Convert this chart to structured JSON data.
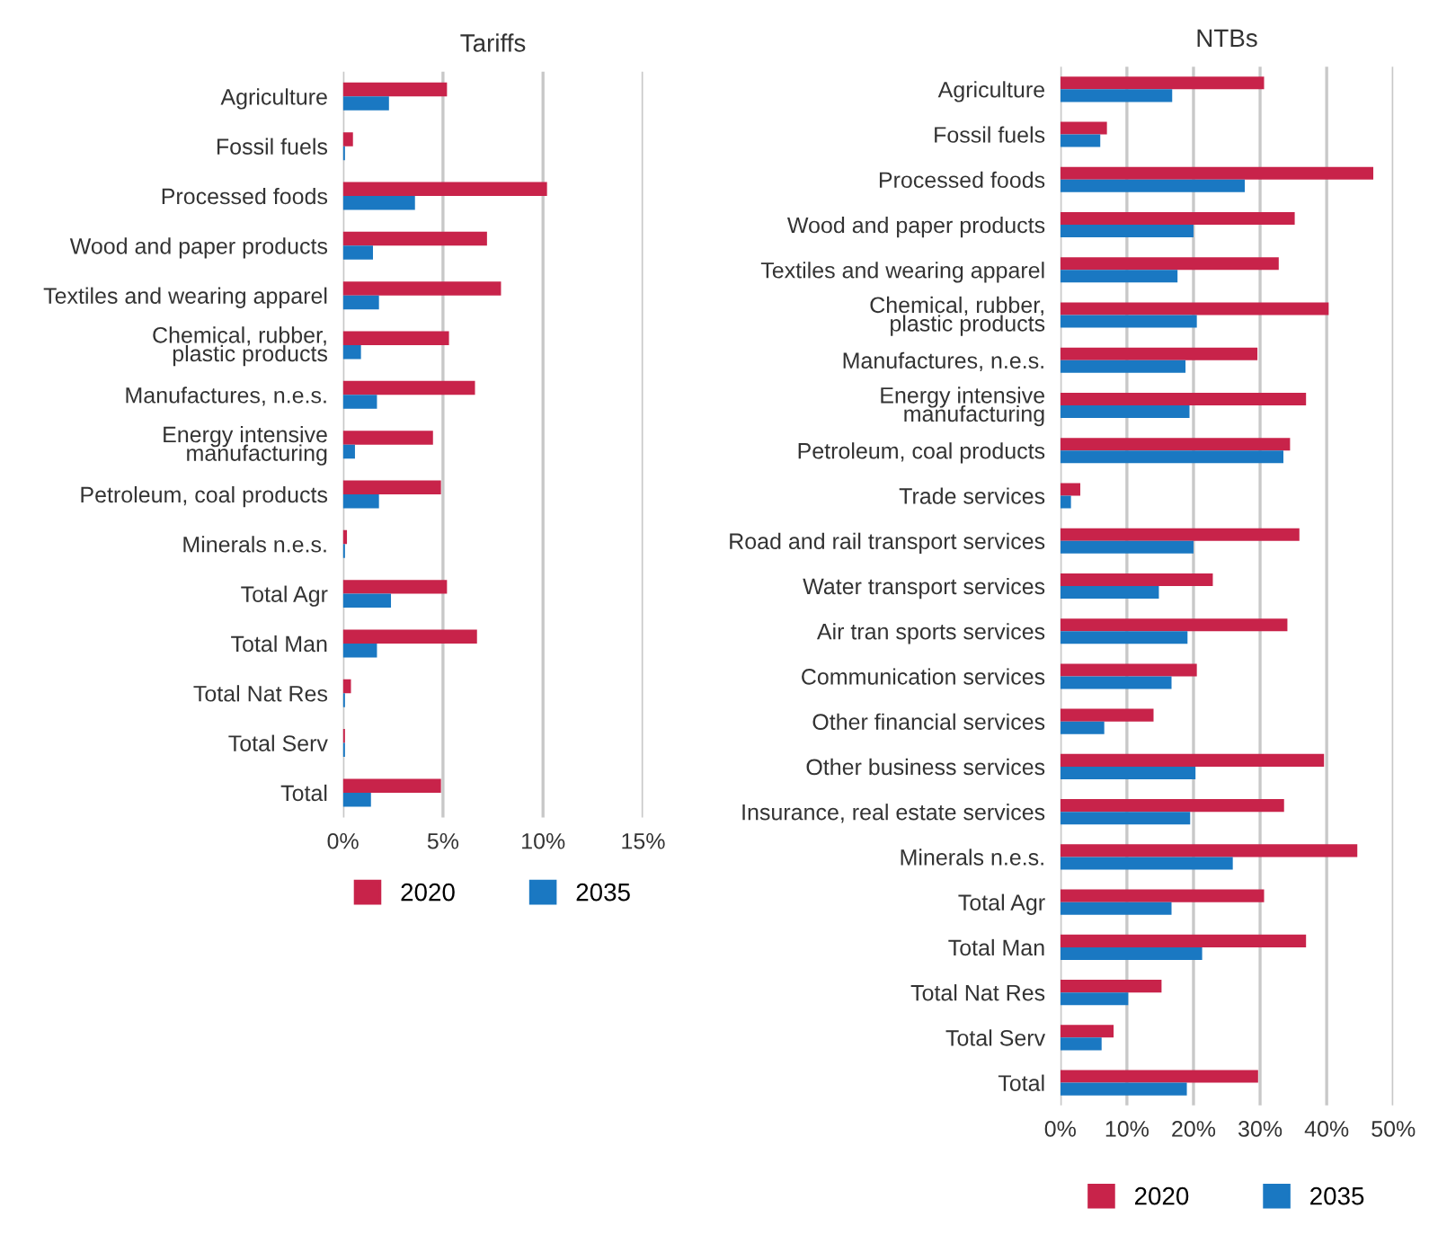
{
  "chart_data": [
    {
      "type": "bar",
      "orientation": "horizontal",
      "title": "Tariffs",
      "categories": [
        "Agriculture",
        "Fossil fuels",
        "Processed foods",
        "Wood and paper products",
        "Textiles and wearing apparel",
        "Chemical, rubber,\nplastic products",
        "Manufactures, n.e.s.",
        "Energy intensive\nmanufacturing",
        "Petroleum, coal products",
        "Minerals n.e.s.",
        "Total Agr",
        "Total Man",
        "Total Nat Res",
        "Total Serv",
        "Total"
      ],
      "series": [
        {
          "name": "2020",
          "color": "#c8234a",
          "values": [
            5.2,
            0.5,
            10.2,
            7.2,
            7.9,
            5.3,
            6.6,
            4.5,
            4.9,
            0.2,
            5.2,
            6.7,
            0.4,
            0.1,
            4.9
          ]
        },
        {
          "name": "2035",
          "color": "#1a78c2",
          "values": [
            2.3,
            0.1,
            3.6,
            1.5,
            1.8,
            0.9,
            1.7,
            0.6,
            1.8,
            0.1,
            2.4,
            1.7,
            0.1,
            0.1,
            1.4
          ]
        }
      ],
      "xlim": [
        0,
        15
      ],
      "xticks": [
        {
          "value": 0,
          "label": "0%"
        },
        {
          "value": 5,
          "label": "5%"
        },
        {
          "value": 10,
          "label": "10%"
        },
        {
          "value": 15,
          "label": "15%"
        }
      ],
      "grid": "x",
      "legend": "bottom"
    },
    {
      "type": "bar",
      "orientation": "horizontal",
      "title": "NTBs",
      "categories": [
        "Agriculture",
        "Fossil fuels",
        "Processed foods",
        "Wood and paper products",
        "Textiles and wearing apparel",
        "Chemical, rubber,\nplastic products",
        "Manufactures, n.e.s.",
        "Energy intensive\nmanufacturing",
        "Petroleum, coal products",
        "Trade services",
        "Road and rail transport services",
        "Water transport services",
        "Air tran sports services",
        "Communication services",
        "Other financial services",
        "Other business services",
        "Insurance, real estate services",
        "Minerals n.e.s.",
        "Total Agr",
        "Total Man",
        "Total Nat Res",
        "Total Serv",
        "Total"
      ],
      "series": [
        {
          "name": "2020",
          "color": "#c8234a",
          "values": [
            30.6,
            7.0,
            47.0,
            35.2,
            32.8,
            40.3,
            29.6,
            36.9,
            34.5,
            3.0,
            35.9,
            22.9,
            34.1,
            20.5,
            14.0,
            39.6,
            33.6,
            44.6,
            30.6,
            36.9,
            15.2,
            8.0,
            29.7
          ]
        },
        {
          "name": "2035",
          "color": "#1a78c2",
          "values": [
            16.8,
            6.0,
            27.7,
            20.0,
            17.6,
            20.5,
            18.8,
            19.4,
            33.5,
            1.6,
            20.0,
            14.8,
            19.1,
            16.7,
            6.6,
            20.3,
            19.5,
            25.9,
            16.7,
            21.3,
            10.2,
            6.2,
            19.0
          ]
        }
      ],
      "xlim": [
        0,
        50
      ],
      "xticks": [
        {
          "value": 0,
          "label": "0%"
        },
        {
          "value": 10,
          "label": "10%"
        },
        {
          "value": 20,
          "label": "20%"
        },
        {
          "value": 30,
          "label": "30%"
        },
        {
          "value": 40,
          "label": "40%"
        },
        {
          "value": 50,
          "label": "50%"
        }
      ],
      "grid": "x",
      "legend": "bottom"
    }
  ]
}
